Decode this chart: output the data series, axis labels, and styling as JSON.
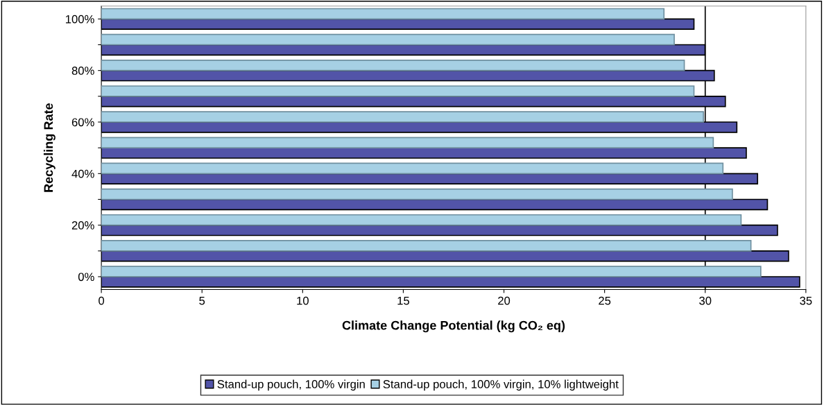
{
  "chart_data": {
    "type": "bar",
    "orientation": "horizontal",
    "xlabel": "Climate Change Potential (kg CO₂ eq)",
    "ylabel": "Recycling Rate",
    "categories": [
      "100%",
      null,
      "80%",
      null,
      "60%",
      null,
      "40%",
      null,
      "20%",
      null,
      "0%"
    ],
    "series": [
      {
        "name": "Stand-up pouch, 100% virgin",
        "color": "#5254a8",
        "values": [
          29.44,
          29.99,
          30.45,
          31.0,
          31.57,
          32.04,
          32.6,
          33.09,
          33.59,
          34.14,
          34.69
        ]
      },
      {
        "name": "Stand-up pouch, 100% virgin, 10% lightweight",
        "color": "#a6d0e4",
        "values": [
          27.95,
          28.46,
          28.96,
          29.44,
          29.91,
          30.4,
          30.88,
          31.35,
          31.78,
          32.27,
          32.76
        ]
      }
    ],
    "xlim": [
      0,
      35
    ],
    "xticks": [
      0,
      5,
      10,
      15,
      20,
      25,
      30,
      35
    ],
    "ref_lines": [
      {
        "axis": "x",
        "value": 30,
        "color": "#000000"
      }
    ],
    "grid": false,
    "legend": "bottom"
  }
}
